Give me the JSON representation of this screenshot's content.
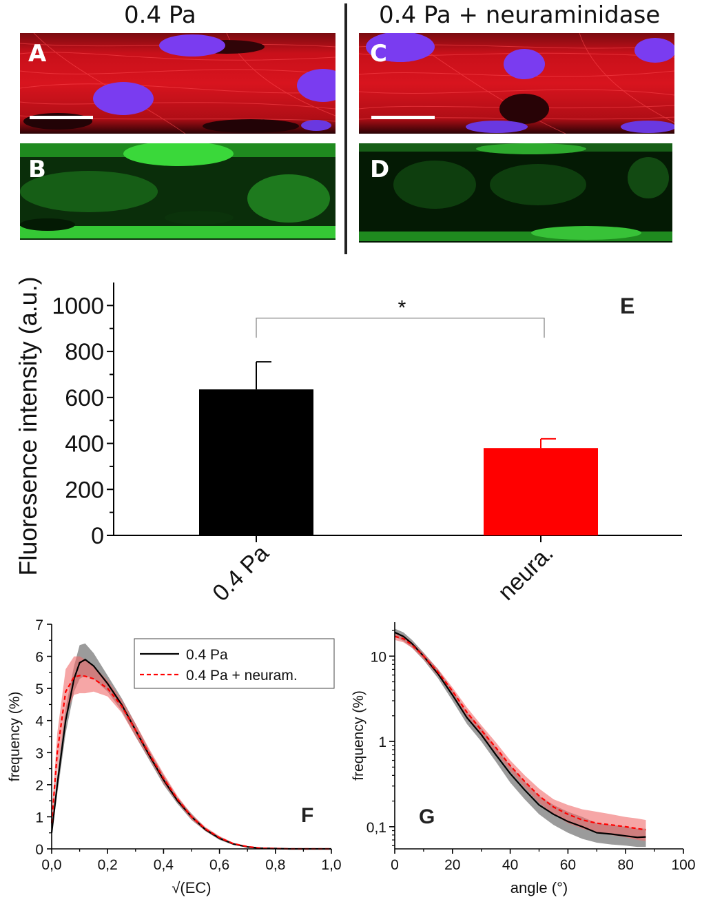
{
  "headers": {
    "left": "0.4 Pa",
    "right": "0.4 Pa + neuraminidase"
  },
  "micrographs": [
    {
      "letter": "A",
      "stain": "F-actin (red) + nuclei (blue)"
    },
    {
      "letter": "B",
      "stain": "glycocalyx (green)"
    },
    {
      "letter": "C",
      "stain": "F-actin (red) + nuclei (blue)"
    },
    {
      "letter": "D",
      "stain": "glycocalyx (green)"
    }
  ],
  "colors": {
    "black_series": "#000000",
    "red_series": "#ff0000",
    "red_band": "#f06b6b",
    "grey_band": "#8a8a8a",
    "actin": "#e0141e",
    "nuclei": "#7a3cf0",
    "glyco": "#22c022"
  },
  "chart_data": [
    {
      "panel": "E",
      "type": "bar",
      "ylabel": "Fluoresence intensity (a.u.)",
      "ylim": [
        0,
        1100
      ],
      "yticks": [
        0,
        200,
        400,
        600,
        800,
        1000
      ],
      "categories": [
        "0.4 Pa",
        "neura."
      ],
      "values": [
        635,
        380
      ],
      "errors": [
        120,
        40
      ],
      "bar_colors": [
        "#000000",
        "#ff0000"
      ],
      "significance": "*"
    },
    {
      "panel": "F",
      "type": "line",
      "xlabel": "√(EC)",
      "ylabel": "frequency (%)",
      "xlim": [
        0,
        1.0
      ],
      "ylim": [
        0,
        7
      ],
      "xticks": [
        "0,0",
        "0,2",
        "0,4",
        "0,6",
        "0,8",
        "1,0"
      ],
      "yticks": [
        "0",
        "1",
        "2",
        "3",
        "4",
        "5",
        "6",
        "7"
      ],
      "legend": [
        "0.4 Pa",
        "0.4 Pa + neuram."
      ],
      "x": [
        0,
        0.02,
        0.05,
        0.08,
        0.1,
        0.12,
        0.15,
        0.2,
        0.25,
        0.3,
        0.35,
        0.4,
        0.45,
        0.5,
        0.55,
        0.6,
        0.65,
        0.7,
        0.75,
        0.8,
        0.85,
        0.9,
        0.95,
        1.0
      ],
      "series": [
        {
          "name": "0.4 Pa",
          "values": [
            0.5,
            2.0,
            4.0,
            5.3,
            5.8,
            5.9,
            5.7,
            5.15,
            4.5,
            3.7,
            2.9,
            2.15,
            1.5,
            1.0,
            0.6,
            0.33,
            0.15,
            0.06,
            0.02,
            0.01,
            0.0,
            0.0,
            0.0,
            0.0
          ],
          "lower": [
            0.4,
            1.7,
            3.6,
            4.9,
            5.3,
            5.4,
            5.3,
            4.9,
            4.3,
            3.5,
            2.75,
            2.0,
            1.4,
            0.9,
            0.55,
            0.28,
            0.12,
            0.05,
            0.01,
            0.0,
            0.0,
            0.0,
            0.0,
            0.0
          ],
          "upper": [
            0.6,
            2.3,
            4.4,
            5.7,
            6.35,
            6.4,
            6.1,
            5.4,
            4.7,
            3.9,
            3.05,
            2.3,
            1.6,
            1.1,
            0.65,
            0.38,
            0.18,
            0.07,
            0.03,
            0.01,
            0.0,
            0.0,
            0.0,
            0.0
          ]
        },
        {
          "name": "0.4 Pa + neuram.",
          "values": [
            0.8,
            3.0,
            4.9,
            5.35,
            5.4,
            5.38,
            5.3,
            5.0,
            4.45,
            3.7,
            2.95,
            2.2,
            1.55,
            1.0,
            0.62,
            0.35,
            0.16,
            0.07,
            0.02,
            0.01,
            0.0,
            0.0,
            0.0,
            0.0
          ],
          "lower": [
            0.6,
            2.4,
            4.2,
            4.8,
            4.85,
            4.85,
            4.9,
            4.75,
            4.25,
            3.5,
            2.8,
            2.05,
            1.45,
            0.92,
            0.56,
            0.3,
            0.13,
            0.05,
            0.01,
            0.0,
            0.0,
            0.0,
            0.0,
            0.0
          ],
          "upper": [
            1.0,
            3.6,
            5.6,
            6.0,
            6.0,
            5.9,
            5.7,
            5.25,
            4.65,
            3.9,
            3.1,
            2.35,
            1.65,
            1.08,
            0.68,
            0.4,
            0.19,
            0.09,
            0.03,
            0.01,
            0.0,
            0.0,
            0.0,
            0.0
          ]
        }
      ]
    },
    {
      "panel": "G",
      "type": "line",
      "xlabel": "angle (°)",
      "ylabel": "frequency (%)",
      "yscale": "log",
      "xlim": [
        0,
        100
      ],
      "ylim": [
        0.055,
        25
      ],
      "xticks": [
        "0",
        "20",
        "40",
        "60",
        "80",
        "100"
      ],
      "yticks": [
        {
          "value": 0.1,
          "label": "0,1"
        },
        {
          "value": 1,
          "label": "1"
        },
        {
          "value": 10,
          "label": "10"
        }
      ],
      "x": [
        0,
        3,
        6,
        10,
        15,
        20,
        25,
        30,
        35,
        40,
        45,
        50,
        55,
        60,
        65,
        70,
        75,
        80,
        84,
        87
      ],
      "series": [
        {
          "name": "0.4 Pa",
          "values": [
            19,
            17,
            14,
            10,
            6.2,
            3.5,
            1.9,
            1.2,
            0.7,
            0.42,
            0.27,
            0.18,
            0.14,
            0.115,
            0.1,
            0.085,
            0.082,
            0.078,
            0.075,
            0.076
          ],
          "lower": [
            17,
            15,
            12.5,
            9,
            5.5,
            3.0,
            1.6,
            1.0,
            0.58,
            0.33,
            0.21,
            0.14,
            0.105,
            0.085,
            0.072,
            0.065,
            0.062,
            0.06,
            0.058,
            0.058
          ],
          "upper": [
            21,
            19,
            15.5,
            11,
            7.0,
            4.0,
            2.2,
            1.45,
            0.85,
            0.52,
            0.34,
            0.23,
            0.18,
            0.15,
            0.13,
            0.11,
            0.105,
            0.1,
            0.095,
            0.095
          ]
        },
        {
          "name": "0.4 Pa + neuram.",
          "values": [
            17,
            16,
            13.5,
            10,
            6.5,
            3.9,
            2.2,
            1.35,
            0.85,
            0.52,
            0.34,
            0.23,
            0.17,
            0.14,
            0.12,
            0.11,
            0.105,
            0.1,
            0.095,
            0.092
          ],
          "lower": [
            15.5,
            14.5,
            12.5,
            9.2,
            5.9,
            3.5,
            1.95,
            1.2,
            0.74,
            0.45,
            0.29,
            0.19,
            0.14,
            0.11,
            0.095,
            0.085,
            0.08,
            0.075,
            0.07,
            0.068
          ],
          "upper": [
            18.5,
            17.5,
            14.5,
            10.8,
            7.1,
            4.3,
            2.5,
            1.55,
            0.98,
            0.6,
            0.4,
            0.28,
            0.21,
            0.18,
            0.16,
            0.15,
            0.14,
            0.13,
            0.125,
            0.12
          ]
        }
      ]
    }
  ]
}
